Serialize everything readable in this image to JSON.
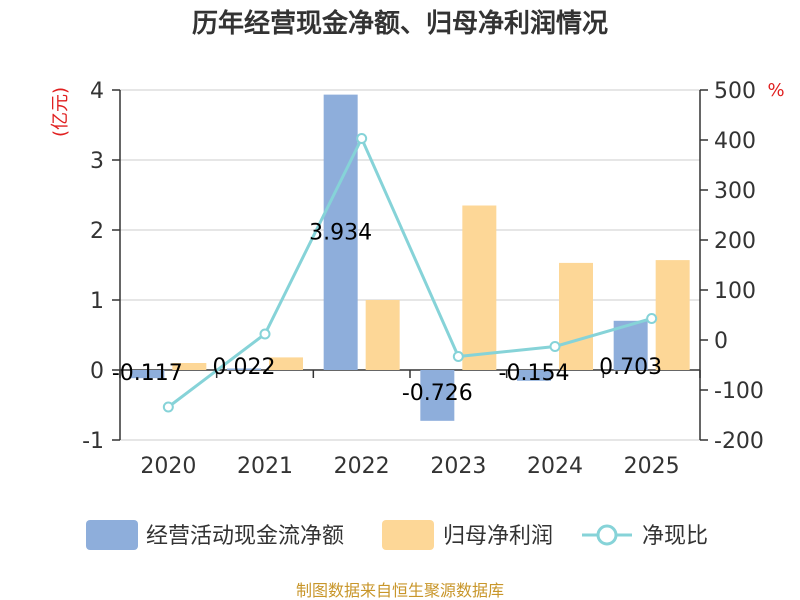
{
  "chart_data": {
    "type": "bar",
    "title": "历年经营现金净额、归母净利润情况",
    "categories": [
      "2020",
      "2021",
      "2022",
      "2023",
      "2024",
      "2025"
    ],
    "left_axis": {
      "unit": "(亿元)",
      "ylim": [
        -1,
        4
      ],
      "ticks": [
        "4",
        "3",
        "2",
        "1",
        "0",
        "-1"
      ]
    },
    "right_axis": {
      "unit": "%",
      "ylim": [
        -200,
        500
      ],
      "ticks": [
        "500",
        "400",
        "300",
        "200",
        "100",
        "0",
        "-100",
        "-200"
      ]
    },
    "series": [
      {
        "name": "经营活动现金流净额",
        "type": "bar",
        "axis": "left",
        "color": "#8eaedb",
        "values": [
          -0.117,
          0.022,
          3.934,
          -0.726,
          -0.154,
          0.703
        ],
        "labels": [
          "-0.117",
          "0.022",
          "3.934",
          "-0.726",
          "-0.154",
          "0.703"
        ]
      },
      {
        "name": "归母净利润",
        "type": "bar",
        "axis": "left",
        "color": "#fdd797",
        "values": [
          0.1,
          0.18,
          1.0,
          2.35,
          1.53,
          1.57
        ]
      },
      {
        "name": "净现比",
        "type": "line",
        "axis": "right",
        "color": "#86d3d8",
        "values": [
          -134,
          12,
          403,
          -33,
          -13,
          43
        ]
      }
    ],
    "source": "制图数据来自恒生聚源数据库"
  }
}
